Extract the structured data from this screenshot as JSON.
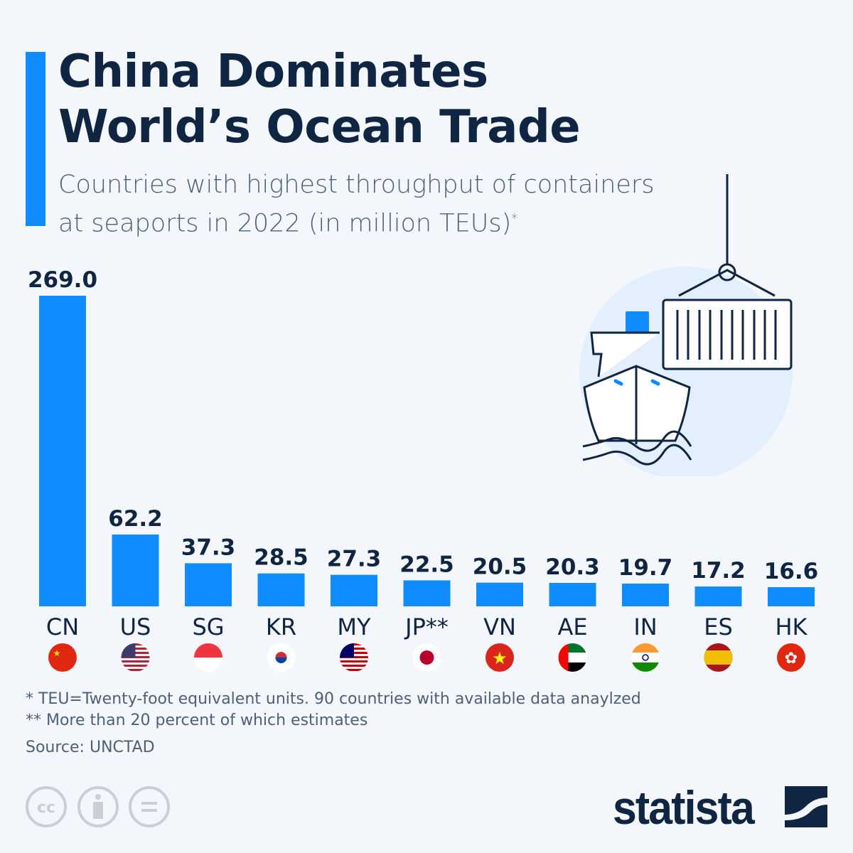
{
  "title_line1": "China Dominates",
  "title_line2": "World’s Ocean Trade",
  "subtitle_line1": "Countries with highest throughput of containers",
  "subtitle_line2": "at seaports in 2022 (in million TEUs)",
  "subtitle_mark": "*",
  "footnote1": "*   TEU=Twenty-foot equivalent units. 90 countries with available data anaylzed",
  "footnote2": "** More than 20 percent of which estimates",
  "source": "Source: UNCTAD",
  "brand": "statista",
  "colors": {
    "bar": "#0f8cff",
    "text": "#0f2542"
  },
  "chart_data": {
    "type": "bar",
    "title": "China Dominates World’s Ocean Trade",
    "ylabel": "million TEUs",
    "ylim": [
      0,
      269
    ],
    "categories": [
      "CN",
      "US",
      "SG",
      "KR",
      "MY",
      "JP**",
      "VN",
      "AE",
      "IN",
      "ES",
      "HK"
    ],
    "values": [
      269.0,
      62.2,
      37.3,
      28.5,
      27.3,
      22.5,
      20.5,
      20.3,
      19.7,
      17.2,
      16.6
    ],
    "labels": [
      "269.0",
      "62.2",
      "37.3",
      "28.5",
      "27.3",
      "22.5",
      "20.5",
      "20.3",
      "19.7",
      "17.2",
      "16.6"
    ]
  }
}
